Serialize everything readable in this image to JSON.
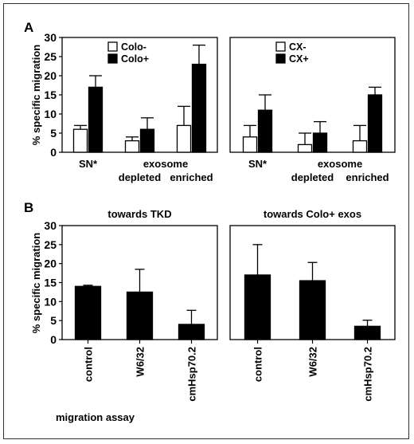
{
  "figure": {
    "panel_labels": [
      "A",
      "B"
    ],
    "footer": "migration assay"
  },
  "chart_data": [
    {
      "type": "bar",
      "panel": "A",
      "title": "",
      "ylabel": "% specific migration",
      "ylim": [
        0,
        30
      ],
      "yticks": [
        "0",
        "5",
        "10",
        "15",
        "20",
        "25",
        "30"
      ],
      "group_labels": [
        {
          "line1": "SN*",
          "line2": ""
        },
        {
          "line1": "",
          "line2": "depleted"
        },
        {
          "line1": "",
          "line2": "enriched"
        }
      ],
      "super_label": "exosome",
      "series": [
        {
          "name": "Colo-",
          "fill": "#ffffff",
          "values": [
            6,
            3,
            7
          ],
          "errors": [
            1,
            1,
            5
          ]
        },
        {
          "name": "Colo+",
          "fill": "#000000",
          "values": [
            17,
            6,
            23
          ],
          "errors": [
            3,
            3,
            5
          ]
        }
      ],
      "legend": "top-left"
    },
    {
      "type": "bar",
      "panel": "A",
      "title": "",
      "ylabel": "",
      "ylim": [
        0,
        30
      ],
      "group_labels": [
        {
          "line1": "SN*",
          "line2": ""
        },
        {
          "line1": "",
          "line2": "depleted"
        },
        {
          "line1": "",
          "line2": "enriched"
        }
      ],
      "super_label": "exosome",
      "series": [
        {
          "name": "CX-",
          "fill": "#ffffff",
          "values": [
            4,
            2,
            3
          ],
          "errors": [
            3,
            3,
            4
          ]
        },
        {
          "name": "CX+",
          "fill": "#000000",
          "values": [
            11,
            5,
            15
          ],
          "errors": [
            4,
            3,
            2
          ]
        }
      ],
      "legend": "top-left"
    },
    {
      "type": "bar",
      "panel": "B",
      "title": "towards TKD",
      "ylabel": "% specific migration",
      "ylim": [
        0,
        30
      ],
      "yticks": [
        "0",
        "5",
        "10",
        "15",
        "20",
        "25",
        "30"
      ],
      "categories": [
        "control",
        "W6/32",
        "cmHsp70.2"
      ],
      "values": [
        14,
        12.5,
        4
      ],
      "errors": [
        0.3,
        6,
        3.7
      ],
      "fill": "#000000"
    },
    {
      "type": "bar",
      "panel": "B",
      "title": "towards Colo+ exos",
      "ylabel": "",
      "ylim": [
        0,
        30
      ],
      "categories": [
        "control",
        "W6/32",
        "cmHsp70.2"
      ],
      "values": [
        17,
        15.5,
        3.5
      ],
      "errors": [
        8,
        4.8,
        1.6
      ],
      "fill": "#000000"
    }
  ]
}
